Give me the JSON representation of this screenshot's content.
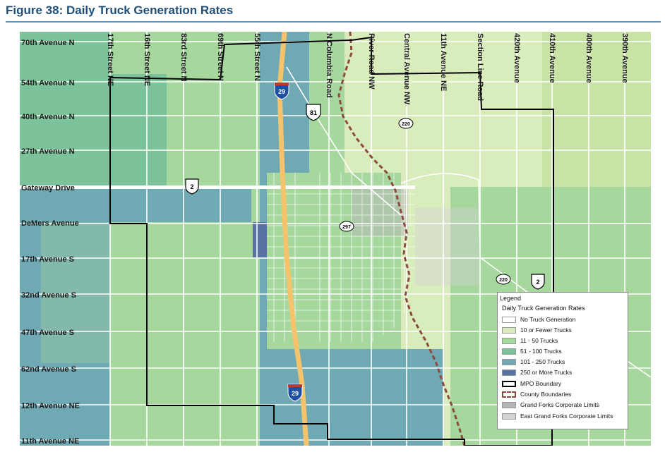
{
  "figure_title": "Figure 38: Daily Truck Generation Rates",
  "colors": {
    "title": "#1f4e79",
    "title_rule": "#5aa0d8",
    "no_truck": "#ffffff",
    "ten_or_fewer": "#d9ecbc",
    "eleven_to_fifty": "#a6d89e",
    "fifty_one_to_hundred": "#7cc39b",
    "hundred_one_to_250": "#6fa9b3",
    "over_250": "#5a72a3",
    "interstate": "#f5c36b",
    "mpo_boundary": "#000000",
    "county_boundary": "#8b4a3c"
  },
  "streets_vertical": [
    "17th Street NE",
    "16th Street NE",
    "83rd Street N",
    "69th Street N",
    "55th Street N",
    "N Columbia Road",
    "River Road NW",
    "Central Avenue NW",
    "11th Avenue NE",
    "Section Line Road",
    "420th Avenue",
    "410th Avenue",
    "400th Avenue",
    "390th Avenue"
  ],
  "streets_horizontal": [
    "70th Avenue N",
    "54th Avenue N",
    "40th Avenue  N",
    "27th Avenue N",
    "Gateway Drive",
    "DeMers Avenue",
    "17th Avenue S",
    "32nd Avenue S",
    "47th Avenue S",
    "62nd Avenue S",
    "12th Avenue NE",
    "11th Avenue NE"
  ],
  "shields": {
    "i29_north": "29",
    "i29_south": "29",
    "us81": "81",
    "us2_west": "2",
    "us2_east": "2",
    "r220_north": "220",
    "r220_east": "220",
    "r297": "297"
  },
  "legend": {
    "title": "Legend",
    "subtitle": "Daily Truck Generation Rates",
    "items": [
      {
        "label": "No Truck Generation",
        "color": "#ffffff",
        "kind": "fill"
      },
      {
        "label": "10 or Fewer Trucks",
        "color": "#d9ecbc",
        "kind": "fill"
      },
      {
        "label": "11 - 50 Trucks",
        "color": "#a6d89e",
        "kind": "fill"
      },
      {
        "label": "51 - 100 Trucks",
        "color": "#7cc39b",
        "kind": "fill"
      },
      {
        "label": "101 - 250 Trucks",
        "color": "#6fa9b3",
        "kind": "fill"
      },
      {
        "label": "250 or More Trucks",
        "color": "#5a72a3",
        "kind": "fill"
      },
      {
        "label": "MPO Boundary",
        "color": "#000000",
        "kind": "outline"
      },
      {
        "label": "County Boundaries",
        "color": "#8b4a3c",
        "kind": "dashed"
      },
      {
        "label": "Grand Forks Corporate Limits",
        "color": "#b5b5b5",
        "kind": "fill"
      },
      {
        "label": "East Grand Forks Corporate Limits",
        "color": "#d3d3d3",
        "kind": "fill"
      }
    ]
  }
}
